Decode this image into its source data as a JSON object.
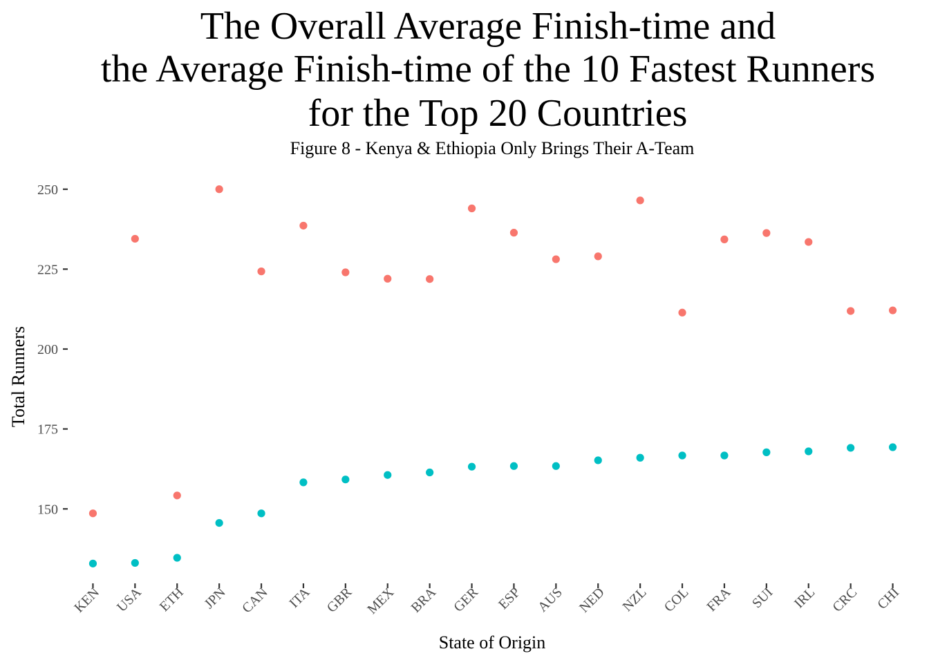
{
  "chart_data": {
    "type": "scatter",
    "title_lines": [
      "The Overall Average Finish-time and",
      "the Average Finish-time of the 10 Fastest Runners",
      "for the Top 20 Countries"
    ],
    "subtitle": "Figure 8 - Kenya & Ethiopia Only Brings Their A-Team",
    "xlabel": "State of Origin",
    "ylabel": "Total Runners",
    "categories": [
      "KEN",
      "USA",
      "ETH",
      "JPN",
      "CAN",
      "ITA",
      "GBR",
      "MEX",
      "BRA",
      "GER",
      "ESP",
      "AUS",
      "NED",
      "NZL",
      "COL",
      "FRA",
      "SUI",
      "IRL",
      "CRC",
      "CHI"
    ],
    "y_ticks": [
      150,
      175,
      200,
      225,
      250
    ],
    "ylim": [
      128,
      256
    ],
    "grid": false,
    "legend": "none",
    "series": [
      {
        "color": "#F8766D",
        "values": [
          148.6,
          234.5,
          154.2,
          250.0,
          224.3,
          238.6,
          224.0,
          222.0,
          221.9,
          244.0,
          236.4,
          228.1,
          229.0,
          246.5,
          211.4,
          234.3,
          236.3,
          233.5,
          211.9,
          212.1
        ]
      },
      {
        "color": "#00BFC4",
        "values": [
          132.9,
          133.1,
          134.7,
          145.6,
          148.6,
          158.3,
          159.2,
          160.6,
          161.4,
          163.2,
          163.4,
          163.4,
          165.2,
          166.0,
          166.7,
          166.7,
          167.7,
          168.0,
          169.1,
          169.3
        ]
      }
    ]
  }
}
